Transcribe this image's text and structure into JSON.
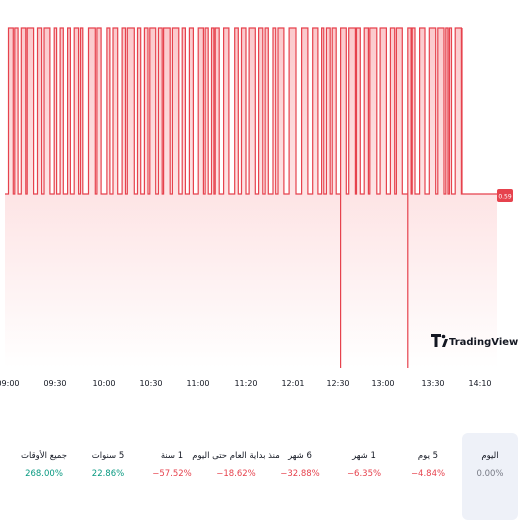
{
  "chart": {
    "type": "area-step",
    "line_color": "#e6424d",
    "fill_color": "#fde2e3",
    "last_price_label": "0.59",
    "x_ticks": [
      "09:00",
      "09:30",
      "10:00",
      "10:30",
      "11:00",
      "11:20",
      "12:01",
      "12:30",
      "13:00",
      "13:30",
      "14:10"
    ]
  },
  "watermark": {
    "brand": "TradingView"
  },
  "periods": [
    {
      "label": "اليوم",
      "value": "0.00%",
      "color": "#787b86",
      "active": true
    },
    {
      "label": "5 يوم",
      "value": "−4.84%",
      "color": "#e6424d",
      "active": false
    },
    {
      "label": "1 شهر",
      "value": "−6.35%",
      "color": "#e6424d",
      "active": false
    },
    {
      "label": "6 شهر",
      "value": "−32.88%",
      "color": "#e6424d",
      "active": false
    },
    {
      "label": "منذ بداية العام حتى اليوم",
      "value": "−18.62%",
      "color": "#e6424d",
      "active": false
    },
    {
      "label": "1 سنة",
      "value": "−57.52%",
      "color": "#e6424d",
      "active": false
    },
    {
      "label": "5 سنوات",
      "value": "22.86%",
      "color": "#089981",
      "active": false
    },
    {
      "label": "جميع الأوقات",
      "value": "268.00%",
      "color": "#089981",
      "active": false
    }
  ]
}
